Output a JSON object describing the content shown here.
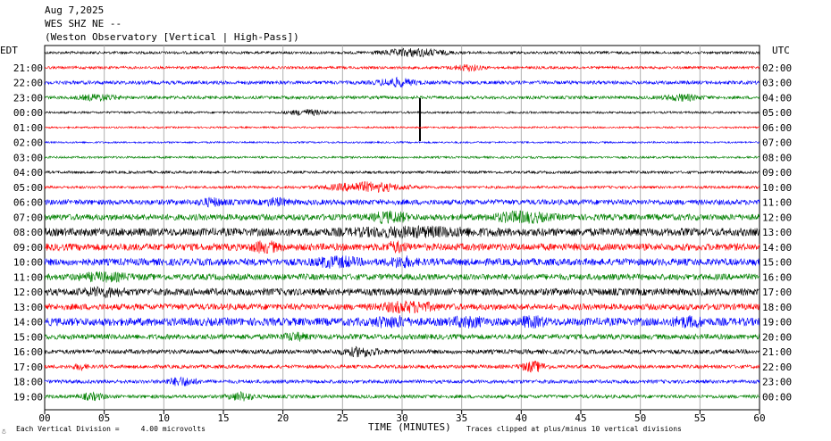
{
  "header": {
    "date": "Aug 7,2025",
    "station": "WES SHZ NE --",
    "description": "(Weston Observatory [Vertical | High-Pass])"
  },
  "labels": {
    "left_tz": "EDT",
    "right_tz": "UTC",
    "x_title": "TIME (MINUTES)",
    "scale_note": "Each Vertical Division =     4.00 microvolts",
    "clip_note": "Traces clipped at plus/minus 10 vertical divisions"
  },
  "chart_data": {
    "type": "line",
    "title": "",
    "xlabel": "TIME (MINUTES)",
    "xlim": [
      0,
      60
    ],
    "x_ticks": [
      "00",
      "05",
      "10",
      "15",
      "20",
      "25",
      "30",
      "35",
      "40",
      "45",
      "50",
      "55",
      "60"
    ],
    "grid": true,
    "left_times": [
      "",
      "21:00",
      "22:00",
      "23:00",
      "00:00",
      "01:00",
      "02:00",
      "03:00",
      "04:00",
      "05:00",
      "06:00",
      "07:00",
      "08:00",
      "09:00",
      "10:00",
      "11:00",
      "12:00",
      "13:00",
      "14:00",
      "15:00",
      "16:00",
      "17:00",
      "18:00",
      "19:00"
    ],
    "right_times": [
      "",
      "02:00",
      "03:00",
      "04:00",
      "05:00",
      "06:00",
      "07:00",
      "08:00",
      "09:00",
      "10:00",
      "11:00",
      "12:00",
      "13:00",
      "14:00",
      "15:00",
      "16:00",
      "17:00",
      "18:00",
      "19:00",
      "20:00",
      "21:00",
      "22:00",
      "23:00",
      "00:00"
    ],
    "trace_colors": [
      "#000000",
      "#ff0000",
      "#0000ff",
      "#008000"
    ],
    "traces": [
      {
        "amp": 1.5,
        "bursts": [
          [
            31.0,
            2.5,
            4
          ]
        ]
      },
      {
        "amp": 1.5,
        "bursts": [
          [
            35.5,
            1.2,
            3
          ]
        ]
      },
      {
        "amp": 2.0,
        "bursts": [
          [
            29.5,
            1.5,
            4
          ]
        ]
      },
      {
        "amp": 1.8,
        "bursts": [
          [
            4.5,
            1.5,
            3
          ],
          [
            53.5,
            1.5,
            3
          ]
        ]
      },
      {
        "amp": 1.2,
        "bursts": [
          [
            22.0,
            1.5,
            3
          ]
        ],
        "spike": [
          31.5,
          16
        ]
      },
      {
        "amp": 1.0,
        "bursts": []
      },
      {
        "amp": 1.0,
        "bursts": []
      },
      {
        "amp": 1.2,
        "bursts": []
      },
      {
        "amp": 1.5,
        "bursts": []
      },
      {
        "amp": 1.5,
        "bursts": [
          [
            27.0,
            3.0,
            5
          ]
        ]
      },
      {
        "amp": 3.0,
        "bursts": [
          [
            14.0,
            1.0,
            3
          ],
          [
            19.5,
            1.0,
            3
          ]
        ]
      },
      {
        "amp": 3.5,
        "bursts": [
          [
            29.0,
            1.2,
            6
          ],
          [
            40.0,
            2.0,
            5
          ]
        ]
      },
      {
        "amp": 4.5,
        "bursts": [
          [
            31.0,
            5.0,
            3
          ]
        ]
      },
      {
        "amp": 4.0,
        "bursts": [
          [
            18.5,
            0.8,
            7
          ],
          [
            29.5,
            0.8,
            4
          ]
        ]
      },
      {
        "amp": 4.0,
        "bursts": [
          [
            24.5,
            1.5,
            5
          ],
          [
            30.0,
            1.0,
            4
          ]
        ]
      },
      {
        "amp": 3.5,
        "bursts": [
          [
            5.0,
            2.0,
            3
          ]
        ]
      },
      {
        "amp": 4.0,
        "bursts": [
          [
            5.0,
            1.5,
            3
          ]
        ]
      },
      {
        "amp": 3.5,
        "bursts": [
          [
            30.5,
            2.0,
            5
          ]
        ]
      },
      {
        "amp": 4.5,
        "bursts": [
          [
            29.0,
            1.2,
            5
          ],
          [
            35.5,
            1.0,
            6
          ],
          [
            41.0,
            0.8,
            6
          ],
          [
            54.0,
            1.0,
            6
          ]
        ]
      },
      {
        "amp": 3.0,
        "bursts": [
          [
            21.0,
            1.0,
            3
          ]
        ]
      },
      {
        "amp": 2.5,
        "bursts": [
          [
            26.5,
            1.5,
            4
          ]
        ]
      },
      {
        "amp": 2.0,
        "bursts": [
          [
            41.0,
            1.0,
            5
          ],
          [
            3.0,
            0.5,
            3
          ]
        ]
      },
      {
        "amp": 2.0,
        "bursts": [
          [
            11.5,
            1.2,
            4
          ]
        ]
      },
      {
        "amp": 2.0,
        "bursts": [
          [
            4.0,
            1.0,
            3
          ],
          [
            16.5,
            1.0,
            4
          ]
        ]
      }
    ]
  }
}
